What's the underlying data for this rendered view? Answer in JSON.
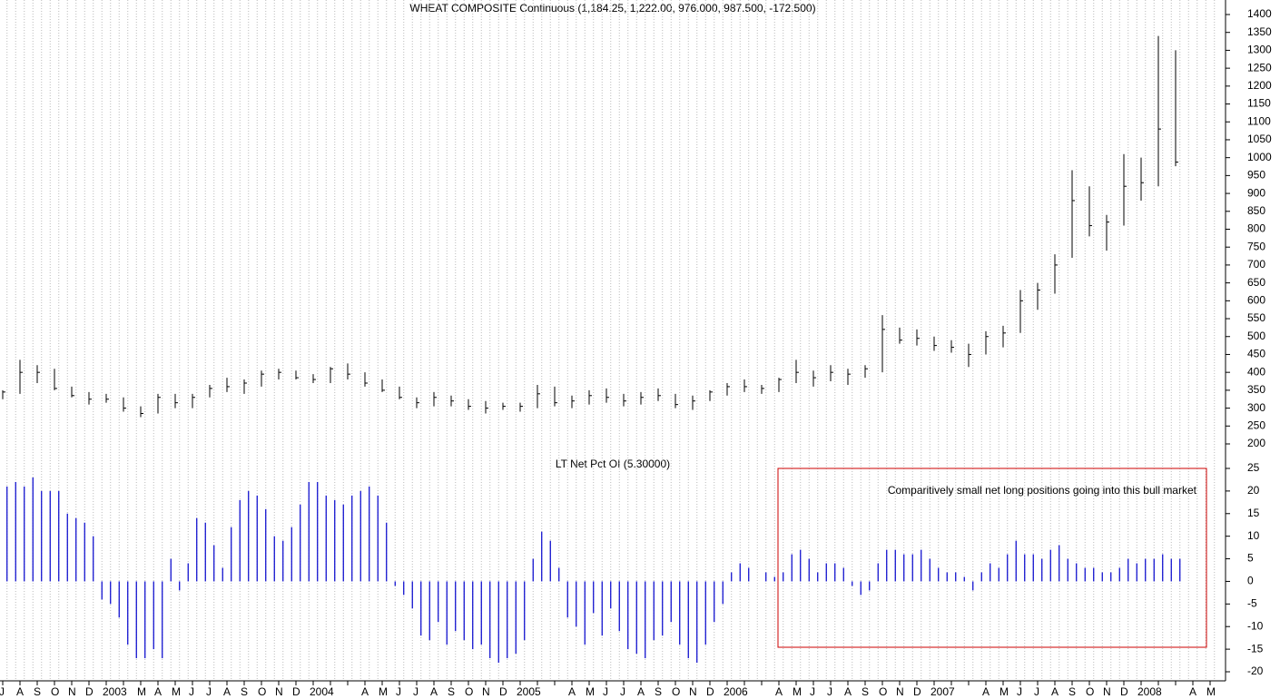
{
  "chart_data": [
    {
      "type": "ohlc",
      "title": "WHEAT COMPOSITE Continuous (1,184.25, 1,222.00, 976.000, 987.500, -172.500)",
      "categories": [
        "J",
        "A",
        "S",
        "O",
        "N",
        "D",
        "2003",
        null,
        "M",
        "A",
        "M",
        "J",
        "J",
        "A",
        "S",
        "O",
        "N",
        "D",
        "2004",
        null,
        null,
        "A",
        "M",
        "J",
        "J",
        "A",
        "S",
        "O",
        "N",
        "D",
        "2005",
        null,
        null,
        "A",
        "M",
        "J",
        "J",
        "A",
        "S",
        "O",
        "N",
        "D",
        "2006",
        null,
        null,
        "A",
        "M",
        "J",
        "J",
        "A",
        "S",
        "O",
        "N",
        "D",
        "2007",
        null,
        null,
        "A",
        "M",
        "J",
        "J",
        "A",
        "S",
        "O",
        "N",
        "D",
        "2008",
        null,
        null,
        "A",
        "M"
      ],
      "high": [
        350,
        435,
        420,
        410,
        360,
        345,
        340,
        330,
        305,
        340,
        340,
        340,
        365,
        385,
        380,
        405,
        410,
        405,
        395,
        415,
        425,
        400,
        380,
        360,
        330,
        345,
        335,
        325,
        320,
        315,
        315,
        365,
        360,
        335,
        350,
        355,
        340,
        345,
        355,
        340,
        335,
        350,
        370,
        380,
        365,
        385,
        435,
        405,
        420,
        410,
        420,
        560,
        525,
        520,
        500,
        490,
        480,
        515,
        530,
        630,
        650,
        730,
        965,
        920,
        840,
        1010,
        1000,
        1340,
        1300,
        null,
        null
      ],
      "low": [
        325,
        340,
        370,
        350,
        330,
        310,
        315,
        290,
        275,
        285,
        300,
        300,
        330,
        345,
        340,
        360,
        380,
        380,
        370,
        370,
        380,
        360,
        345,
        325,
        300,
        305,
        305,
        295,
        285,
        295,
        290,
        300,
        305,
        300,
        310,
        315,
        305,
        310,
        320,
        300,
        295,
        320,
        335,
        345,
        340,
        345,
        370,
        360,
        375,
        365,
        385,
        400,
        480,
        475,
        460,
        455,
        415,
        450,
        470,
        510,
        575,
        620,
        720,
        780,
        740,
        810,
        880,
        920,
        976,
        null,
        null
      ],
      "close": [
        345,
        400,
        400,
        355,
        335,
        325,
        325,
        300,
        285,
        330,
        315,
        330,
        355,
        360,
        370,
        395,
        400,
        385,
        380,
        410,
        395,
        370,
        350,
        330,
        315,
        330,
        320,
        305,
        300,
        305,
        305,
        340,
        315,
        320,
        335,
        330,
        320,
        330,
        335,
        310,
        320,
        345,
        360,
        360,
        355,
        380,
        400,
        385,
        400,
        395,
        410,
        520,
        490,
        495,
        475,
        470,
        450,
        500,
        510,
        600,
        630,
        700,
        880,
        810,
        820,
        920,
        930,
        1080,
        987.5,
        null,
        null
      ],
      "color": "#000000",
      "ylim": [
        200,
        1400
      ],
      "yticks": [
        1400,
        1350,
        1300,
        1250,
        1200,
        1150,
        1100,
        1050,
        1000,
        950,
        900,
        850,
        800,
        750,
        700,
        650,
        600,
        550,
        500,
        450,
        400,
        350,
        300,
        250,
        200
      ]
    },
    {
      "type": "bar",
      "title": "LT Net Pct OI (5.30000)",
      "values": [
        21,
        21,
        22,
        21,
        23,
        20,
        20,
        20,
        15,
        14,
        13,
        10,
        -4,
        -5,
        -8,
        -14,
        -17,
        -17,
        -15,
        -17,
        5,
        -2,
        4,
        14,
        13,
        8,
        3,
        12,
        18,
        20,
        19,
        16,
        10,
        9,
        12,
        17,
        22,
        22,
        19,
        18,
        17,
        19,
        20,
        21,
        19,
        13,
        -1,
        -3,
        -6,
        -12,
        -13,
        -9,
        -14,
        -11,
        -13,
        -15,
        -14,
        -17,
        -18,
        -17,
        -16,
        -13,
        5,
        11,
        9,
        3,
        -8,
        -10,
        -14,
        -7,
        -12,
        -6,
        -11,
        -15,
        -16,
        -17,
        -13,
        -12,
        -9,
        -14,
        -17,
        -18,
        -14,
        -9,
        -5,
        2,
        4,
        3,
        0,
        2,
        1,
        2,
        6,
        7,
        5,
        2,
        4,
        4,
        3,
        -1,
        -3,
        -2,
        4,
        7,
        7,
        6,
        6,
        7,
        5,
        3,
        2,
        2,
        1,
        -2,
        2,
        4,
        3,
        6,
        9,
        6,
        6,
        5,
        7,
        8,
        5,
        4,
        3,
        3,
        2,
        2,
        3,
        5,
        4,
        5,
        5,
        6,
        5,
        5,
        null,
        null,
        null,
        null
      ],
      "color": "#0000cc",
      "ylim": [
        -20,
        25
      ],
      "yticks": [
        25,
        20,
        15,
        10,
        5,
        0,
        -5,
        -10,
        -15,
        -20
      ],
      "annotation": "Comparitively small net long positions going into this bull market",
      "annotation_color": "#0000cc",
      "box_color": "#cc0000"
    }
  ]
}
